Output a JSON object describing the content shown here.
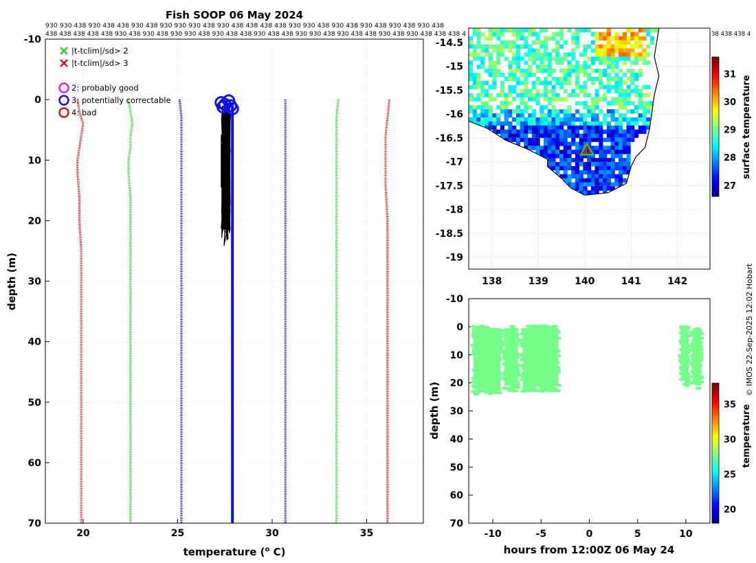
{
  "figure_title": "Fish SOOP 06 May 2024",
  "top_numbers": {
    "row1": "930 930 438 930 438 438 930 438 930 930 930 438 930 438 438 438 438 930 930 438 930 438 930 438 930 438 930 438",
    "row2": "438 438 438 438 438 930 438 930 438 930 930 438 930 438 438 930 438 438 930 930 438 930 438 438 930 438 930 438 438 438 4",
    "map_row": "38 438 438 4"
  },
  "credit": "© IMOS 22-Sep-2025 12:02 Hobart",
  "colors": {
    "green": "#1fd41f",
    "red": "#dd1111",
    "navy": "#0a0aa0",
    "blue": "#1111ee",
    "magenta": "#e020e0",
    "black": "#000000"
  },
  "chart_data": [
    {
      "id": "profile",
      "type": "line",
      "title": "",
      "xlabel_main": "temperature (",
      "xlabel_sup": "o",
      "xlabel_tail": " C)",
      "ylabel": "depth (m)",
      "xlim": [
        18,
        38
      ],
      "ylim": [
        -10,
        70
      ],
      "y_reversed": true,
      "xticks": [
        "20",
        "25",
        "30",
        "35"
      ],
      "xtick_values": [
        20,
        25,
        30,
        35
      ],
      "yticks": [
        "-10",
        "0",
        "10",
        "20",
        "30",
        "40",
        "50",
        "60",
        "70"
      ],
      "ytick_values": [
        -10,
        0,
        10,
        20,
        30,
        40,
        50,
        60,
        70
      ],
      "legend": [
        {
          "marker": "x",
          "color": "#1fd41f",
          "label": "|t-tclim|/sd> 2"
        },
        {
          "marker": "x",
          "color": "#dd1111",
          "label": "|t-tclim|/sd> 3"
        },
        {
          "marker": "o",
          "color": "#e020e0",
          "label": "2: probably good"
        },
        {
          "marker": "o",
          "color": "#1111ee",
          "label": "3: potentially correctable"
        },
        {
          "marker": "o",
          "color": "#dd1111",
          "label": "4: bad"
        }
      ],
      "series": [
        {
          "name": "clim -3sd",
          "color": "#dd1111",
          "style": "dotted",
          "points": [
            [
              19.7,
              0
            ],
            [
              19.8,
              2
            ],
            [
              20.0,
              4
            ],
            [
              19.9,
              6
            ],
            [
              19.8,
              8
            ],
            [
              19.7,
              10
            ],
            [
              19.7,
              12
            ],
            [
              19.8,
              16
            ],
            [
              19.8,
              20
            ],
            [
              19.9,
              25
            ],
            [
              19.9,
              30
            ],
            [
              19.9,
              40
            ],
            [
              19.9,
              50
            ],
            [
              19.9,
              60
            ],
            [
              19.9,
              70
            ]
          ]
        },
        {
          "name": "clim -2sd",
          "color": "#1fd41f",
          "style": "dotted",
          "points": [
            [
              22.4,
              0
            ],
            [
              22.5,
              2
            ],
            [
              22.6,
              4
            ],
            [
              22.5,
              6
            ],
            [
              22.5,
              8
            ],
            [
              22.4,
              10
            ],
            [
              22.4,
              12
            ],
            [
              22.5,
              16
            ],
            [
              22.5,
              20
            ],
            [
              22.5,
              25
            ],
            [
              22.5,
              30
            ],
            [
              22.5,
              40
            ],
            [
              22.5,
              50
            ],
            [
              22.5,
              60
            ],
            [
              22.5,
              70
            ]
          ]
        },
        {
          "name": "clim -1sd",
          "color": "#0a0aa0",
          "style": "dotted",
          "points": [
            [
              25.1,
              0
            ],
            [
              25.2,
              3
            ],
            [
              25.2,
              6
            ],
            [
              25.2,
              10
            ],
            [
              25.2,
              20
            ],
            [
              25.2,
              30
            ],
            [
              25.2,
              40
            ],
            [
              25.2,
              50
            ],
            [
              25.2,
              60
            ],
            [
              25.2,
              70
            ]
          ]
        },
        {
          "name": "clim +1sd",
          "color": "#0a0aa0",
          "style": "dotted",
          "points": [
            [
              30.7,
              0
            ],
            [
              30.7,
              10
            ],
            [
              30.7,
              20
            ],
            [
              30.7,
              30
            ],
            [
              30.7,
              40
            ],
            [
              30.7,
              50
            ],
            [
              30.7,
              60
            ],
            [
              30.7,
              70
            ]
          ]
        },
        {
          "name": "clim +2sd",
          "color": "#1fd41f",
          "style": "dotted",
          "points": [
            [
              33.5,
              0
            ],
            [
              33.4,
              3
            ],
            [
              33.4,
              6
            ],
            [
              33.4,
              10
            ],
            [
              33.4,
              20
            ],
            [
              33.4,
              30
            ],
            [
              33.4,
              40
            ],
            [
              33.4,
              50
            ],
            [
              33.4,
              60
            ],
            [
              33.4,
              70
            ]
          ]
        },
        {
          "name": "clim +3sd",
          "color": "#dd1111",
          "style": "dotted",
          "points": [
            [
              36.2,
              0
            ],
            [
              36.1,
              3
            ],
            [
              36.0,
              6
            ],
            [
              36.0,
              10
            ],
            [
              36.0,
              14
            ],
            [
              36.1,
              20
            ],
            [
              36.1,
              30
            ],
            [
              36.1,
              40
            ],
            [
              36.1,
              50
            ],
            [
              36.1,
              60
            ],
            [
              36.1,
              70
            ]
          ]
        },
        {
          "name": "qc flagged",
          "color": "#1111ee",
          "style": "solid",
          "points": [
            [
              27.9,
              1
            ],
            [
              27.9,
              10
            ],
            [
              27.9,
              20
            ],
            [
              27.9,
              30
            ],
            [
              27.9,
              40
            ],
            [
              27.9,
              50
            ],
            [
              27.9,
              60
            ],
            [
              27.9,
              70
            ]
          ]
        }
      ],
      "black_band": {
        "tmin": 27.3,
        "tmax": 27.8,
        "dmin": 0,
        "dmax": 24.5
      },
      "circles": [
        [
          27.3,
          0.5
        ],
        [
          27.4,
          1.2
        ],
        [
          27.5,
          0.8
        ],
        [
          27.8,
          1.0
        ],
        [
          27.9,
          1.5
        ],
        [
          27.7,
          0.2
        ]
      ]
    },
    {
      "id": "map",
      "type": "heatmap",
      "xlim": [
        137.5,
        142.7
      ],
      "ylim": [
        -19.25,
        -14.2
      ],
      "xticks": [
        "138",
        "139",
        "140",
        "141",
        "142"
      ],
      "xtick_values": [
        138,
        139,
        140,
        141,
        142
      ],
      "yticks": [
        "-14.5",
        "-15",
        "-15.5",
        "-16",
        "-16.5",
        "-17",
        "-17.5",
        "-18",
        "-18.5",
        "-19"
      ],
      "ytick_values": [
        -14.5,
        -15,
        -15.5,
        -16,
        -16.5,
        -17,
        -17.5,
        -18,
        -18.5,
        -19
      ],
      "colorbar_label": "surface temperature",
      "colorbar_ticks": [
        "27",
        "28",
        "29",
        "30",
        "31"
      ],
      "colorbar_tick_values": [
        27,
        28,
        29,
        30,
        31
      ],
      "colorbar_range": [
        26.6,
        31.6
      ],
      "coast": [
        [
          137.5,
          -16.15
        ],
        [
          137.9,
          -16.3
        ],
        [
          138.3,
          -16.55
        ],
        [
          138.8,
          -16.75
        ],
        [
          139.2,
          -16.95
        ],
        [
          139.2,
          -17.1
        ],
        [
          139.5,
          -17.35
        ],
        [
          139.7,
          -17.55
        ],
        [
          140.0,
          -17.7
        ],
        [
          140.5,
          -17.65
        ],
        [
          140.9,
          -17.45
        ],
        [
          141.0,
          -17.1
        ],
        [
          141.1,
          -16.9
        ],
        [
          141.3,
          -16.7
        ],
        [
          141.4,
          -16.3
        ],
        [
          141.5,
          -15.6
        ],
        [
          141.6,
          -15.2
        ],
        [
          141.5,
          -14.8
        ],
        [
          141.55,
          -14.5
        ],
        [
          141.6,
          -14.2
        ]
      ],
      "ship_position": [
        140.05,
        -16.75
      ]
    },
    {
      "id": "depth_time",
      "type": "scatter",
      "xlabel": "hours from 12:00Z 06 May 24",
      "ylabel": "depth (m)",
      "xlim": [
        -12.5,
        12.5
      ],
      "ylim": [
        -10,
        70
      ],
      "y_reversed": true,
      "xticks": [
        "-10",
        "-5",
        "0",
        "5",
        "10"
      ],
      "xtick_values": [
        -10,
        -5,
        0,
        5,
        10
      ],
      "yticks": [
        "-10",
        "0",
        "10",
        "20",
        "30",
        "40",
        "50",
        "60",
        "70"
      ],
      "ytick_values": [
        -10,
        0,
        10,
        20,
        30,
        40,
        50,
        60,
        70
      ],
      "colorbar_label": "temperature",
      "colorbar_ticks": [
        "20",
        "25",
        "30",
        "35"
      ],
      "colorbar_tick_values": [
        20,
        25,
        30,
        35
      ],
      "colorbar_range": [
        18,
        38
      ],
      "point_temperature": 27.8,
      "segments": [
        {
          "t0": -12.0,
          "t1": -9.2,
          "dmax": 24
        },
        {
          "t0": -8.8,
          "t1": -7.4,
          "dmax": 23
        },
        {
          "t0": -6.9,
          "t1": -3.2,
          "dmax": 23
        },
        {
          "t0": 9.5,
          "t1": 10.3,
          "dmax": 21
        },
        {
          "t0": 10.7,
          "t1": 11.6,
          "dmax": 22
        }
      ]
    }
  ]
}
